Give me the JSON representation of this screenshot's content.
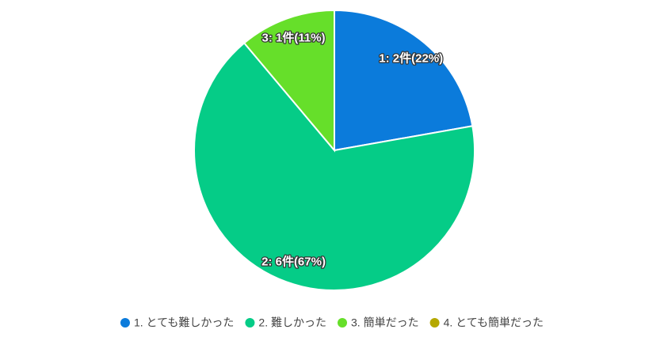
{
  "chart_data": {
    "type": "pie",
    "categories": [
      "1. とても難しかった",
      "2. 難しかった",
      "3. 簡単だった",
      "4. とても簡単だった"
    ],
    "values": [
      2,
      6,
      1,
      0
    ],
    "value_labels": [
      "1: 2件(22%)",
      "2: 6件(67%)",
      "3: 1件(11%)",
      null
    ],
    "colors": [
      "#0b7bdb",
      "#05cc87",
      "#66df2a",
      "#b5a800"
    ],
    "legend": "bottom"
  }
}
